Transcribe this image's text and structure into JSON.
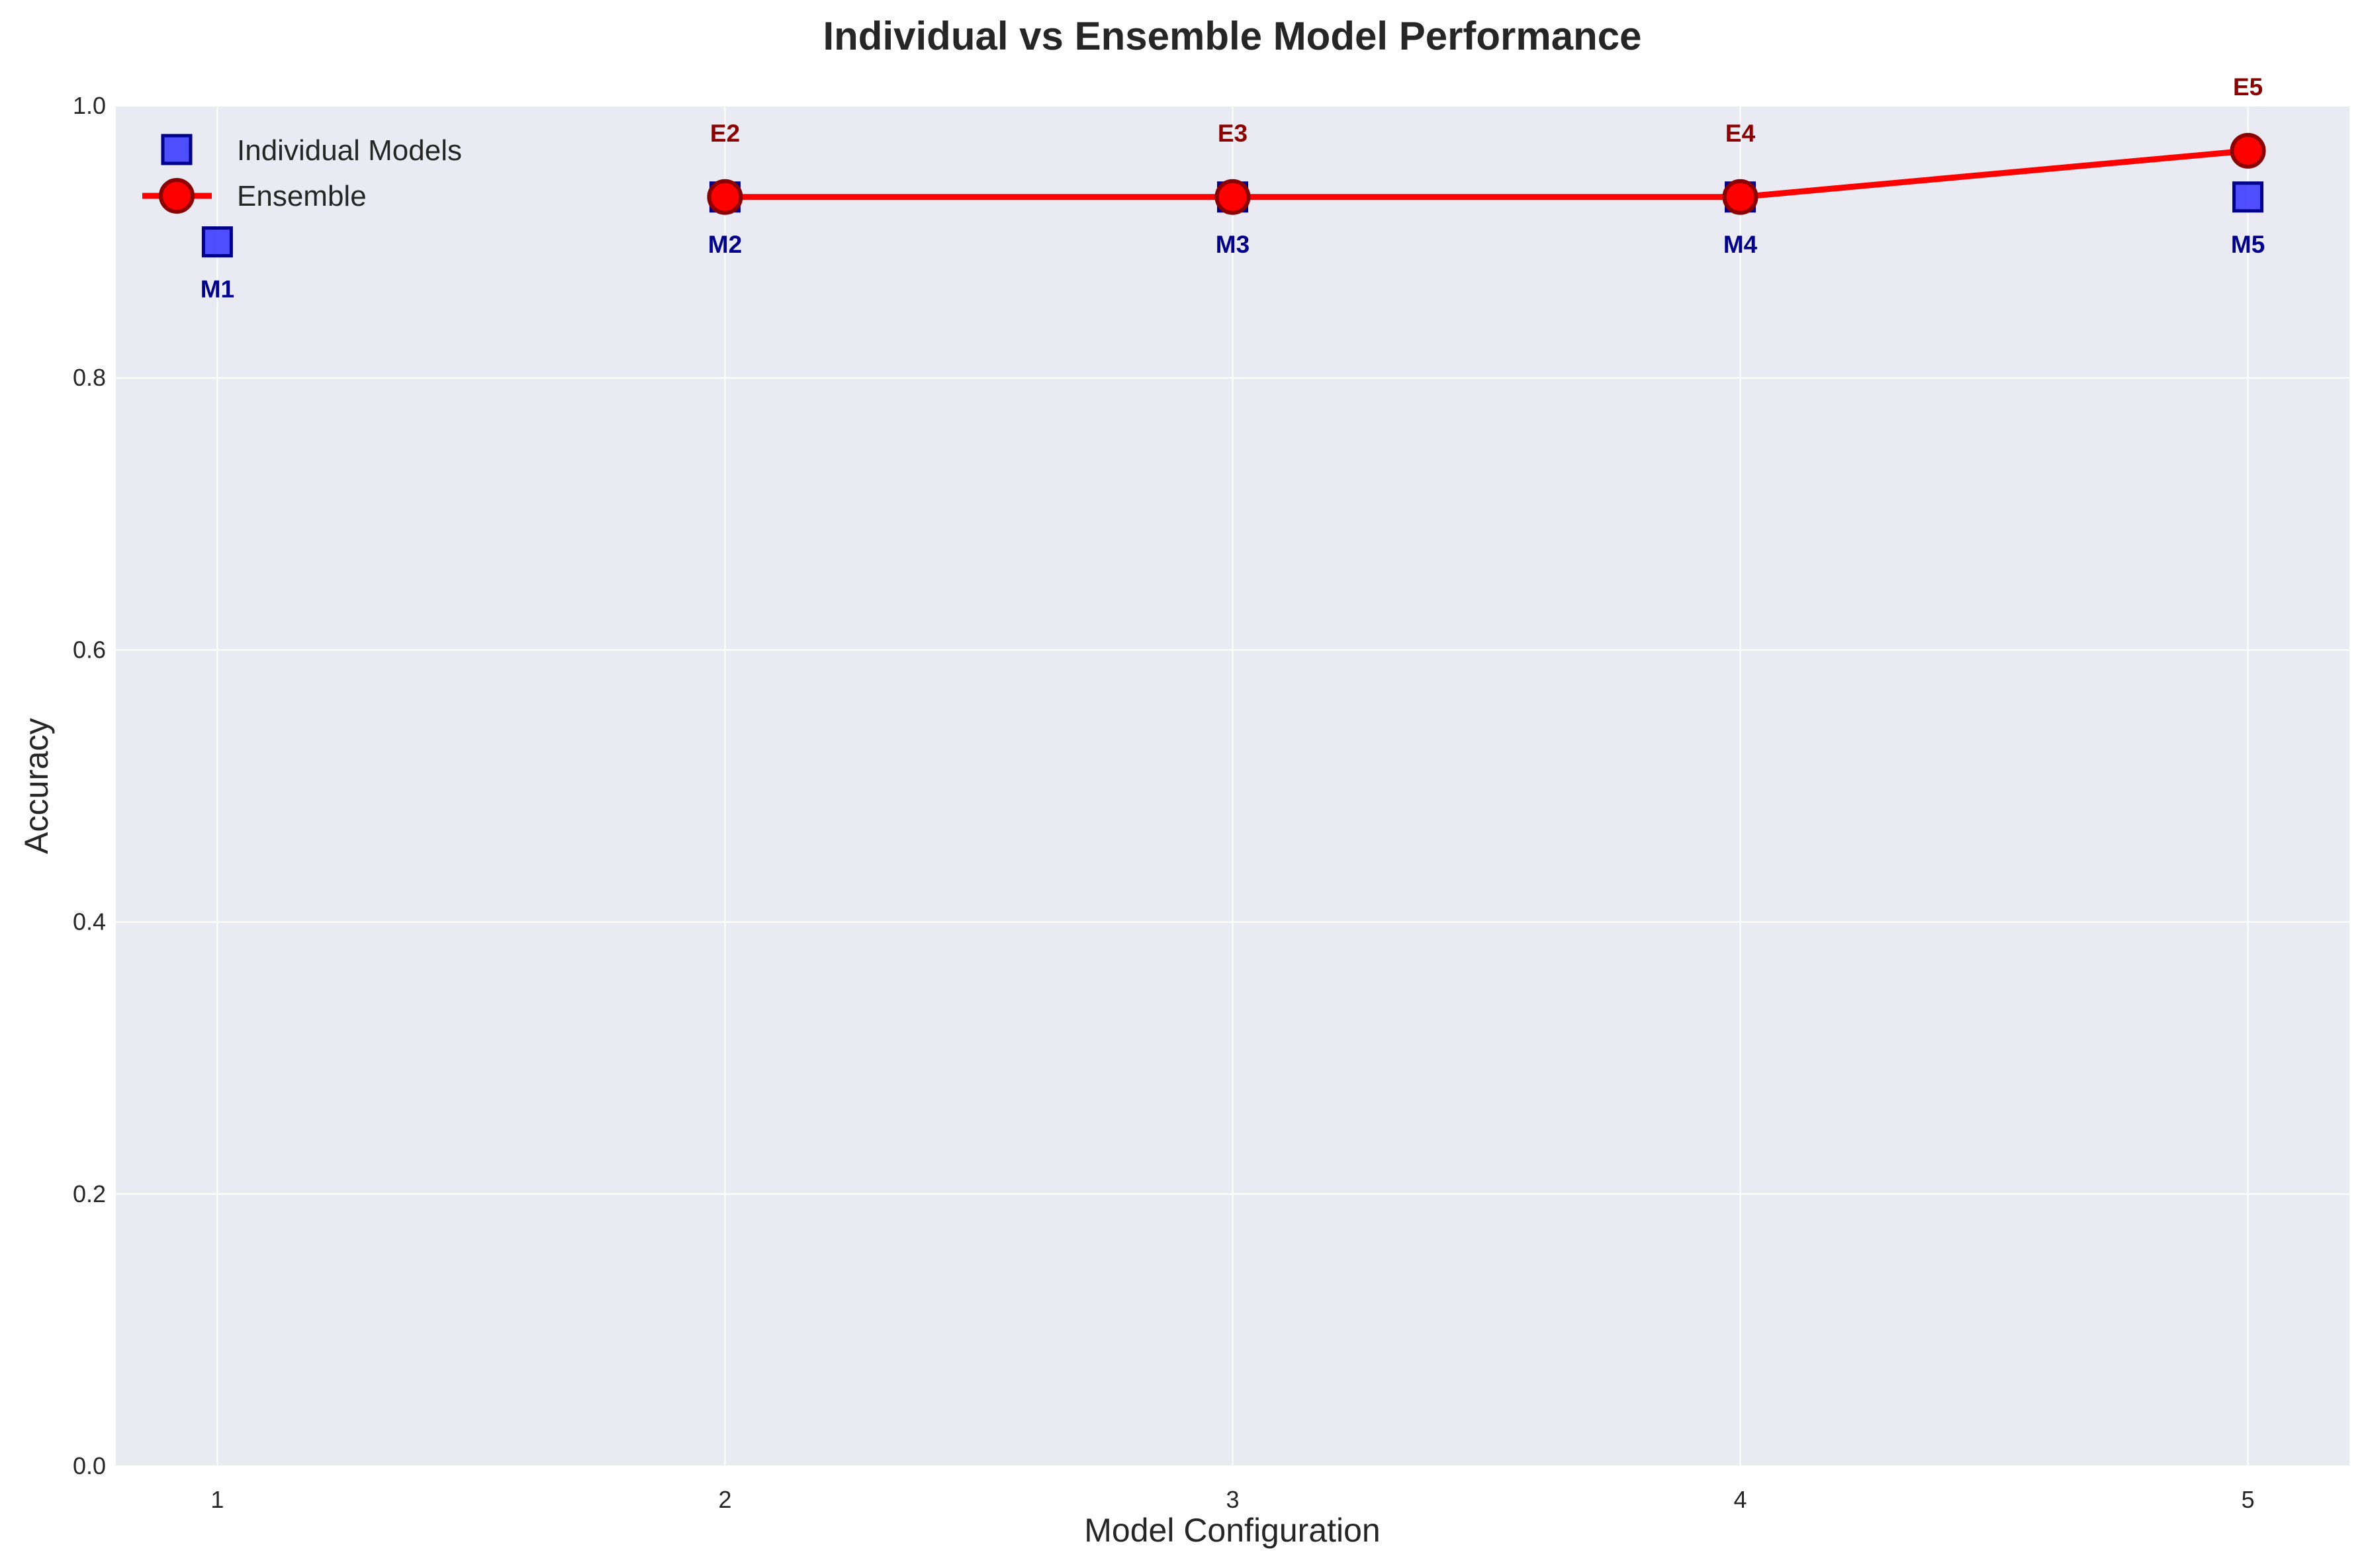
{
  "chart_data": {
    "type": "line",
    "title": "Individual vs Ensemble Model Performance",
    "xlabel": "Model Configuration",
    "ylabel": "Accuracy",
    "xlim": [
      0.8,
      5.2
    ],
    "ylim": [
      0,
      1.0
    ],
    "x_ticks": [
      1,
      2,
      3,
      4,
      5
    ],
    "y_ticks": [
      0.0,
      0.2,
      0.4,
      0.6,
      0.8,
      1.0
    ],
    "y_tick_labels": [
      "0.0",
      "0.2",
      "0.4",
      "0.6",
      "0.8",
      "1.0"
    ],
    "grid": true,
    "legend_position": "upper-left",
    "series": [
      {
        "name": "Individual Models",
        "style": "scatter-square",
        "color": "#3333ff",
        "edge_color": "#00008b",
        "x": [
          1,
          2,
          3,
          4,
          5
        ],
        "y": [
          0.9,
          0.933,
          0.933,
          0.933,
          0.933
        ],
        "point_labels": [
          "M1",
          "M2",
          "M3",
          "M4",
          "M5"
        ]
      },
      {
        "name": "Ensemble",
        "style": "line-circle",
        "color": "#ff0000",
        "edge_color": "#8b0000",
        "x": [
          2,
          3,
          4,
          5
        ],
        "y": [
          0.933,
          0.933,
          0.933,
          0.967
        ],
        "point_labels": [
          "E2",
          "E3",
          "E4",
          "E5"
        ]
      }
    ]
  },
  "colors": {
    "plot_background": "#eaeaf2",
    "grid": "#ffffff",
    "text": "#262626",
    "individual_label": "#00008b",
    "ensemble_label": "#8b0000"
  }
}
